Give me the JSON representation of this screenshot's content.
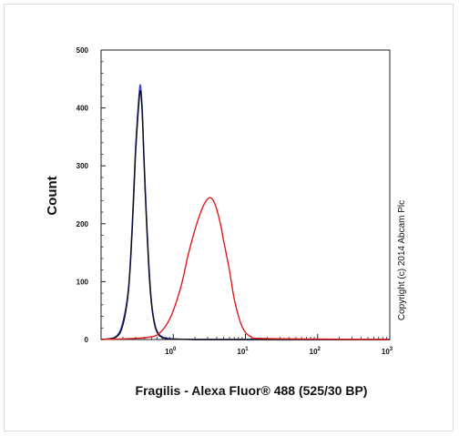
{
  "chart_data": {
    "type": "line",
    "title": "",
    "xlabel": "Fragilis - Alexa Fluor® 488 (525/30 BP)",
    "ylabel": "Count",
    "x_scale": "log",
    "xlim": [
      0.1,
      1000
    ],
    "ylim": [
      0,
      500
    ],
    "y_ticks": [
      "0",
      "100",
      "200",
      "300",
      "400",
      "500"
    ],
    "x_ticks": [
      {
        "base": "10",
        "exp": "0"
      },
      {
        "base": "10",
        "exp": "1"
      },
      {
        "base": "10",
        "exp": "2"
      },
      {
        "base": "10",
        "exp": "3"
      }
    ],
    "grid": false,
    "legend": "none",
    "series": [
      {
        "color": "#2a3fd6",
        "x": [
          0.1,
          0.16,
          0.2,
          0.24,
          0.27,
          0.3,
          0.33,
          0.35,
          0.37,
          0.39,
          0.42,
          0.46,
          0.5,
          0.56,
          0.63,
          0.72,
          0.85,
          1.0,
          2.0,
          10,
          1000
        ],
        "y": [
          0,
          5,
          30,
          90,
          200,
          330,
          410,
          440,
          405,
          330,
          230,
          130,
          65,
          25,
          10,
          4,
          2,
          1,
          0,
          0,
          0
        ]
      },
      {
        "color": "#111111",
        "x": [
          0.1,
          0.16,
          0.2,
          0.24,
          0.27,
          0.3,
          0.33,
          0.35,
          0.37,
          0.39,
          0.42,
          0.46,
          0.5,
          0.56,
          0.63,
          0.72,
          0.85,
          1.0,
          2.0,
          10,
          1000
        ],
        "y": [
          0,
          4,
          25,
          85,
          190,
          320,
          400,
          430,
          395,
          320,
          220,
          120,
          60,
          22,
          8,
          3,
          1,
          1,
          0,
          0,
          0
        ]
      },
      {
        "color": "#e01b1b",
        "x": [
          0.1,
          0.3,
          0.45,
          0.6,
          0.8,
          1.0,
          1.3,
          1.6,
          2.0,
          2.4,
          2.8,
          3.2,
          3.6,
          4.0,
          4.5,
          5.0,
          6.0,
          7.0,
          8.5,
          10,
          12,
          15,
          100,
          1000
        ],
        "y": [
          0,
          2,
          4,
          8,
          25,
          50,
          95,
          145,
          190,
          220,
          238,
          245,
          240,
          225,
          200,
          170,
          120,
          70,
          30,
          12,
          5,
          2,
          1,
          0
        ]
      }
    ]
  },
  "copyright": "Copyright (c) 2014 Abcam Plc"
}
